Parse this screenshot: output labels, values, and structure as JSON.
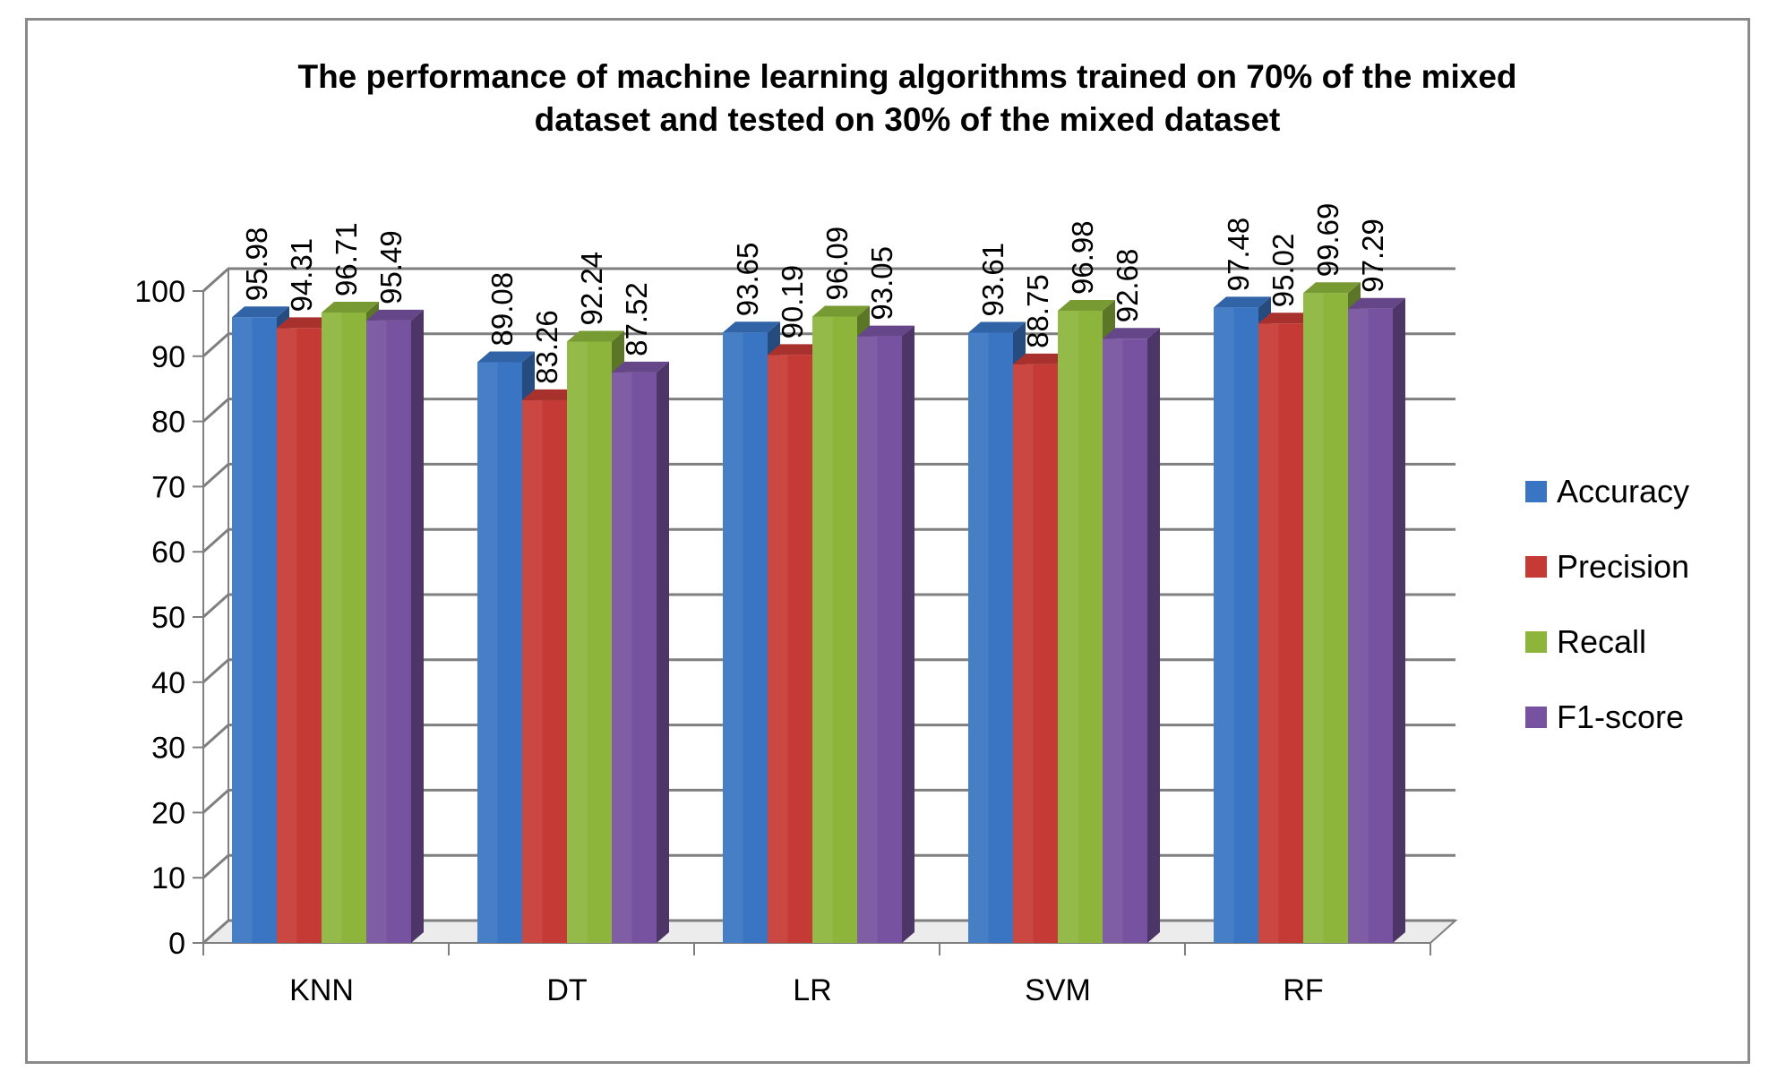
{
  "chart_data": {
    "type": "bar",
    "title_lines": [
      "The performance of machine learning algorithms trained on 70% of the mixed",
      "dataset and tested on 30% of the mixed dataset"
    ],
    "categories": [
      "KNN",
      "DT",
      "LR",
      "SVM",
      "RF"
    ],
    "series": [
      {
        "name": "Accuracy",
        "values": [
          95.98,
          89.08,
          93.65,
          93.61,
          97.48
        ],
        "color": "#3a75c4"
      },
      {
        "name": "Precision",
        "values": [
          94.31,
          83.26,
          90.19,
          88.75,
          95.02
        ],
        "color": "#c63a35"
      },
      {
        "name": "Recall",
        "values": [
          96.71,
          92.24,
          96.09,
          96.98,
          99.69
        ],
        "color": "#8db53c"
      },
      {
        "name": "F1-score",
        "values": [
          95.49,
          87.52,
          93.05,
          92.68,
          97.29
        ],
        "color": "#7752a0"
      }
    ],
    "data_labels": [
      [
        "95.98",
        "89.08",
        "93.65",
        "93.61",
        "97.48"
      ],
      [
        "94.31",
        "83.26",
        "90.19",
        "88.75",
        "95.02"
      ],
      [
        "96.71",
        "92.24",
        "96.09",
        "96.98",
        "99.69"
      ],
      [
        "95.49",
        "87.52",
        "93.05",
        "92.68",
        "97.29"
      ]
    ],
    "yticks": [
      "0",
      "10",
      "20",
      "30",
      "40",
      "50",
      "60",
      "70",
      "80",
      "90",
      "100"
    ],
    "ylim": [
      0,
      100
    ],
    "grid": true,
    "legend_position": "right",
    "style": "3d-clustered-column"
  }
}
